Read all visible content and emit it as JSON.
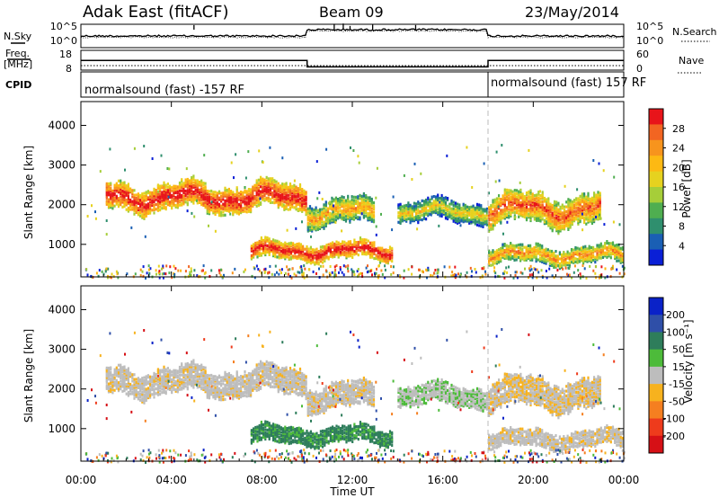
{
  "header": {
    "station": "Adak East (fitACF)",
    "beam": "Beam 09",
    "date": "23/May/2014"
  },
  "noise_panel": {
    "left_label": "N.Sky",
    "right_label": "N.Search",
    "left_ticks": [
      "10^5",
      "10^0"
    ],
    "right_ticks": [
      "10^5",
      "10^0"
    ]
  },
  "freq_panel": {
    "left_label_1": "Freq.",
    "left_label_2": "[MHz]",
    "right_label": "Nave",
    "left_ticks": [
      "18",
      "8"
    ],
    "right_ticks": [
      "60",
      "0"
    ],
    "freq_values_mhz": [
      {
        "start_h": 0,
        "end_h": 10,
        "value": 14
      },
      {
        "start_h": 10,
        "end_h": 18,
        "value": 10
      },
      {
        "start_h": 18,
        "end_h": 24,
        "value": 14
      }
    ]
  },
  "cpid_panel": {
    "label": "CPID",
    "segments": [
      {
        "start_h": 0,
        "text": "normalsound (fast) -157 RF"
      },
      {
        "start_h": 18,
        "text": "normalsound (fast) 157 RF"
      }
    ]
  },
  "power_panel": {
    "ylabel": "Slant Range [km]",
    "yticks": [
      "4000",
      "3000",
      "2000",
      "1000"
    ],
    "colorbar_label": "Power [dB]",
    "colorbar_ticks": [
      "28",
      "24",
      "20",
      "16",
      "12",
      "8",
      "4"
    ],
    "colorbar_colors": [
      "#e8141a",
      "#f26522",
      "#f7941d",
      "#fdb913",
      "#e6d21f",
      "#a6ce39",
      "#4fae50",
      "#2f8f6e",
      "#1a5fb4",
      "#0a1fd6"
    ]
  },
  "velocity_panel": {
    "ylabel": "Slant Range [km]",
    "yticks": [
      "4000",
      "3000",
      "2000",
      "1000"
    ],
    "colorbar_label": "Velocity [m s⁻¹]",
    "colorbar_ticks": [
      "200",
      "100",
      "50",
      "15",
      "-15",
      "-50",
      "-100",
      "-200"
    ],
    "colorbar_colors": [
      "#0a22c8",
      "#2f4fa8",
      "#2e7d5b",
      "#4dbb3a",
      "#bdbdbd",
      "#f7b21e",
      "#f57f20",
      "#ee3b1c",
      "#d61016"
    ]
  },
  "xaxis": {
    "label": "Time UT",
    "ticks": [
      "00:00",
      "04:00",
      "08:00",
      "12:00",
      "16:00",
      "20:00",
      "00:00"
    ]
  },
  "chart_data": {
    "type": "heatmap",
    "title": "Adak East (fitACF)",
    "xlabel": "Time UT",
    "ylabel": "Slant Range [km]",
    "xlim_hours": [
      0,
      24
    ],
    "ylim_km": [
      180,
      4600
    ],
    "backscatter_bands": [
      {
        "name": "far band",
        "start_h": 1.1,
        "end_h": 10.0,
        "range_km": [
          1800,
          2650
        ],
        "power_db": 22,
        "velocity_ms": -5
      },
      {
        "name": "far band",
        "start_h": 10.0,
        "end_h": 13.0,
        "range_km": [
          1450,
          2250
        ],
        "power_db": 15,
        "velocity_ms": -5
      },
      {
        "name": "far band",
        "start_h": 14.0,
        "end_h": 18.0,
        "range_km": [
          1550,
          2200
        ],
        "power_db": 12,
        "velocity_ms": 10
      },
      {
        "name": "far band",
        "start_h": 18.0,
        "end_h": 23.0,
        "range_km": [
          1450,
          2400
        ],
        "power_db": 19,
        "velocity_ms": -10
      },
      {
        "name": "near band",
        "start_h": 7.5,
        "end_h": 13.8,
        "range_km": [
          600,
          1150
        ],
        "power_db": 22,
        "velocity_ms": 40
      },
      {
        "name": "near band",
        "start_h": 18.0,
        "end_h": 24.0,
        "range_km": [
          500,
          1050
        ],
        "power_db": 16,
        "velocity_ms": -5
      }
    ]
  }
}
